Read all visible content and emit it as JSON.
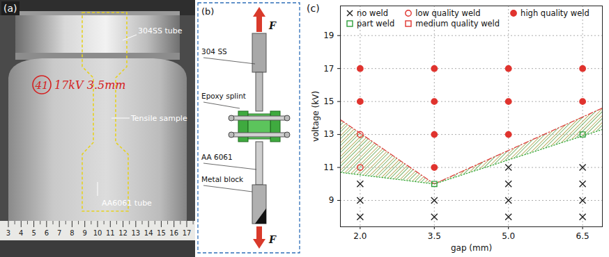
{
  "panel_a": {
    "label": "(a)",
    "annotations": [
      "304SS tube",
      "Tensile sample",
      "AA6061 tube"
    ],
    "handwriting": {
      "circled": "41",
      "text": "17kV 3.5mm"
    },
    "ruler_numbers": [
      3,
      4,
      5,
      6,
      7,
      8,
      9,
      10,
      11,
      12,
      13,
      14,
      15,
      16,
      17
    ]
  },
  "panel_b": {
    "label": "(b)",
    "force": "F",
    "parts": [
      "304 SS",
      "Epoxy splint",
      "AA 6061",
      "Metal block"
    ]
  },
  "chart_data": {
    "panel_label": "(c)",
    "type": "scatter",
    "x_label": "gap (mm)",
    "y_label": "voltage (kV)",
    "xlim": [
      1.6,
      6.9
    ],
    "ylim": [
      7.4,
      20.8
    ],
    "xticks": [
      {
        "value": 2,
        "label": "2.0"
      },
      {
        "value": 3.5,
        "label": "3.5"
      },
      {
        "value": 5,
        "label": "5.0"
      },
      {
        "value": 6.5,
        "label": "6.5"
      }
    ],
    "yticks": [
      9,
      11,
      13,
      15,
      17,
      19
    ],
    "grid": true,
    "legend": "top",
    "series": [
      {
        "name": "no weld",
        "color": "#222222",
        "marker": "x",
        "x": [
          2,
          2,
          2,
          3.5,
          3.5,
          5,
          5,
          5,
          5,
          6.5,
          6.5,
          6.5,
          6.5
        ],
        "y": [
          8,
          9,
          10,
          8,
          9,
          8,
          9,
          10,
          11,
          8,
          9,
          10,
          11
        ]
      },
      {
        "name": "part weld",
        "color": "#2e9e3a",
        "marker": "open_square",
        "x": [
          3.5,
          6.5
        ],
        "y": [
          10,
          13
        ]
      },
      {
        "name": "low quality weld",
        "color": "#e0332e",
        "marker": "open_circle",
        "x": [
          2,
          2
        ],
        "y": [
          11,
          13
        ]
      },
      {
        "name": "medium quality weld",
        "color": "#e0332e",
        "marker": "open_square",
        "x": [],
        "y": []
      },
      {
        "name": "high quality weld",
        "color": "#e0332e",
        "marker": "filled_circle",
        "x": [
          2,
          2,
          3.5,
          3.5,
          3.5,
          3.5,
          5,
          5,
          5,
          6.5,
          6.5
        ],
        "y": [
          15,
          17,
          11,
          13,
          15,
          17,
          13,
          15,
          17,
          15,
          17
        ]
      }
    ],
    "boundaries": [
      {
        "color": "#e04040",
        "line_style": "dashdot",
        "x": [
          1.6,
          3.5,
          6.9
        ],
        "y": [
          13.9,
          10,
          14.6
        ]
      },
      {
        "color": "#3aaa3a",
        "line_style": "dotted",
        "x": [
          1.6,
          3.5,
          6.9
        ],
        "y": [
          10.7,
          10,
          13.3
        ]
      }
    ]
  }
}
